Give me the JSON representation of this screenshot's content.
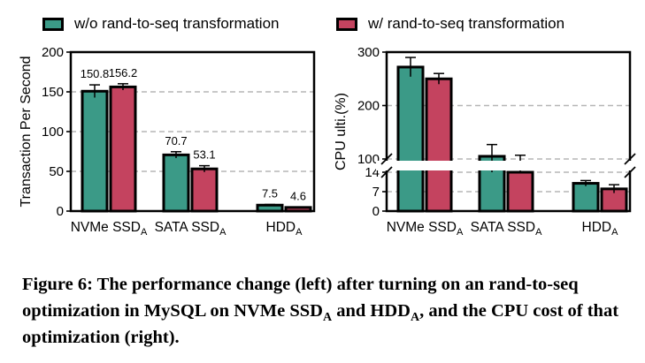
{
  "legend": [
    {
      "label": "w/o rand-to-seq transformation",
      "color": "#3b9a87"
    },
    {
      "label": "w/ rand-to-seq transformation",
      "color": "#c4435f"
    }
  ],
  "chart_data": [
    {
      "type": "bar",
      "ylabel": "Transaction Per Second",
      "xlabel": "",
      "ylim": [
        0,
        200
      ],
      "yticks": [
        "0",
        "50",
        "100",
        "150",
        "200"
      ],
      "grid": "horizontal-dashed",
      "categories": [
        {
          "name": "NVMe SSD",
          "sub": "A"
        },
        {
          "name": "SATA SSD",
          "sub": "A"
        },
        {
          "name": "HDD",
          "sub": "A"
        }
      ],
      "series": [
        {
          "name": "w/o rand-to-seq transformation",
          "values": [
            150.8,
            70.7,
            7.5
          ],
          "errors": [
            8,
            4,
            0.8
          ],
          "labels": [
            "150.8",
            "70.7",
            "7.5"
          ]
        },
        {
          "name": "w/ rand-to-seq transformation",
          "values": [
            156.2,
            53.1,
            4.6
          ],
          "errors": [
            4,
            4,
            0.5
          ],
          "labels": [
            "156.2",
            "53.1",
            "4.6"
          ]
        }
      ]
    },
    {
      "type": "bar",
      "ylabel": "CPU ulti.(%)",
      "xlabel": "",
      "ylim": [
        0,
        300
      ],
      "broken_axis": {
        "lower": [
          0,
          14
        ],
        "upper": [
          100,
          300
        ]
      },
      "yticks_lower": [
        "0",
        "7",
        "14"
      ],
      "yticks_upper": [
        "100",
        "200",
        "300"
      ],
      "grid": "horizontal-dashed",
      "categories": [
        {
          "name": "NVMe SSD",
          "sub": "A"
        },
        {
          "name": "SATA SSD",
          "sub": "A"
        },
        {
          "name": "HDD",
          "sub": "A"
        }
      ],
      "series": [
        {
          "name": "w/o rand-to-seq transformation",
          "values": [
            272,
            105,
            10
          ],
          "errors": [
            18,
            22,
            1
          ]
        },
        {
          "name": "w/ rand-to-seq transformation",
          "values": [
            250,
            95,
            8
          ],
          "errors": [
            10,
            12,
            1.5
          ]
        }
      ]
    }
  ],
  "caption": {
    "parts": [
      {
        "t": "Figure 6: The performance change (left) after turning on an rand-to-seq optimization in MySQL on NVMe SSD"
      },
      {
        "t": "A",
        "sub": true
      },
      {
        "t": " and HDD"
      },
      {
        "t": "A",
        "sub": true
      },
      {
        "t": ", and the CPU cost of that optimization (right)."
      }
    ]
  }
}
